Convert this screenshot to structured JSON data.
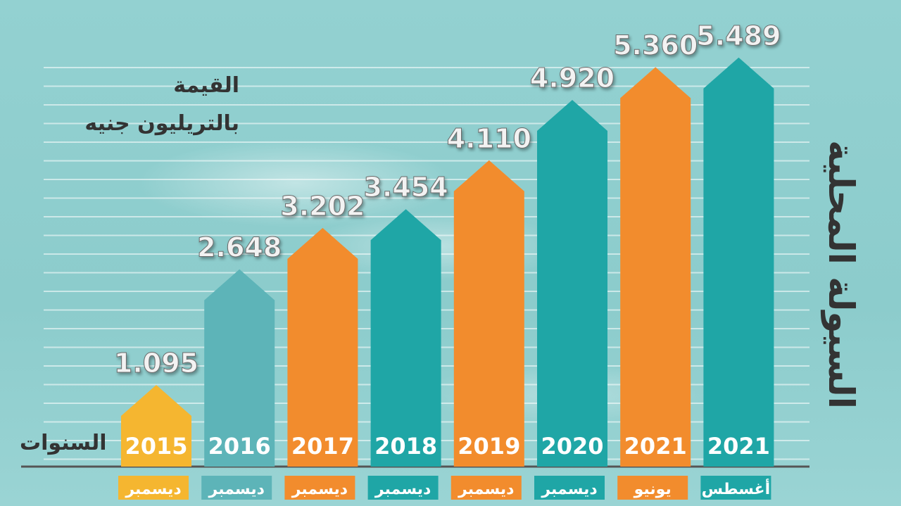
{
  "chart_data": {
    "type": "bar",
    "title": "السيولة المحلية",
    "ylabel_line1": "القيمة",
    "ylabel_line2": "بالتريليون جنيه",
    "xlabel": "السنوات",
    "unit": "تريليون جنيه",
    "categories": [
      "2015",
      "2016",
      "2017",
      "2018",
      "2019",
      "2020",
      "2021",
      "2021"
    ],
    "months": [
      "ديسمبر",
      "ديسمبر",
      "ديسمبر",
      "ديسمبر",
      "ديسمبر",
      "ديسمبر",
      "يونيو",
      "أغسطس"
    ],
    "values": [
      1.095,
      2.648,
      3.202,
      3.454,
      4.11,
      4.92,
      5.36,
      5.489
    ],
    "value_labels": [
      "1.095",
      "2.648",
      "3.202",
      "3.454",
      "4.110",
      "4.920",
      "5.360",
      "5.489"
    ],
    "bar_colors": [
      "#f5b630",
      "#5db4b8",
      "#f28c2d",
      "#1fa6a6",
      "#f28c2d",
      "#1fa6a6",
      "#f28c2d",
      "#1fa6a6"
    ],
    "ylim": [
      0,
      5.6
    ],
    "grid": true
  }
}
